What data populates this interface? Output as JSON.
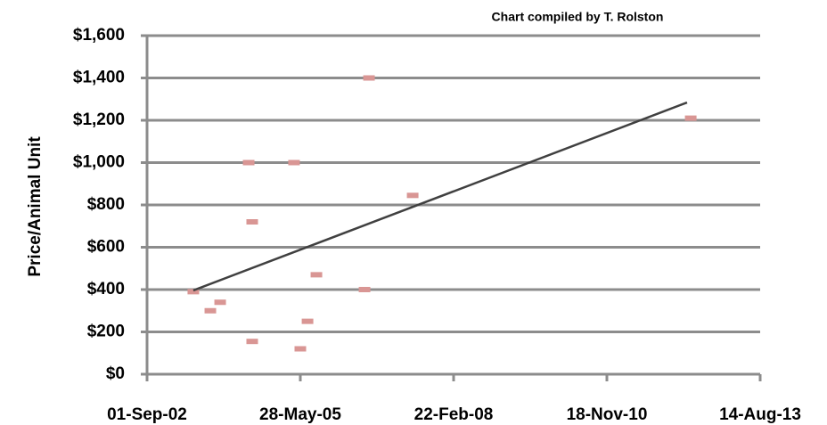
{
  "chart_data": {
    "type": "scatter",
    "subtitle": "Chart compiled by T. Rolston",
    "y_label": "Price/Animal Unit",
    "x": [
      37802,
      37913,
      37977,
      38163,
      38186,
      38186,
      38459,
      38500,
      38547,
      38605,
      38919,
      38948,
      39233,
      41047
    ],
    "values": [
      390,
      300,
      340,
      1000,
      720,
      155,
      1000,
      120,
      250,
      470,
      400,
      1400,
      845,
      1210
    ],
    "color": "#d99694",
    "trendline": {
      "x": [
        37802,
        41023
      ],
      "values": [
        396,
        1284
      ],
      "color": "#404040"
    },
    "xlim": [
      37500,
      41500
    ],
    "xticks": [
      {
        "value": 37500,
        "label": "01-Sep-02"
      },
      {
        "value": 38500,
        "label": "28-May-05"
      },
      {
        "value": 39500,
        "label": "22-Feb-08"
      },
      {
        "value": 40500,
        "label": "18-Nov-10"
      },
      {
        "value": 41500,
        "label": "14-Aug-13"
      }
    ],
    "ylim": [
      0,
      1600
    ],
    "yticks": [
      {
        "value": 0,
        "label": "$0"
      },
      {
        "value": 200,
        "label": "$200"
      },
      {
        "value": 400,
        "label": "$400"
      },
      {
        "value": 600,
        "label": "$600"
      },
      {
        "value": 800,
        "label": "$800"
      },
      {
        "value": 1000,
        "label": "$1,000"
      },
      {
        "value": 1200,
        "label": "$1,200"
      },
      {
        "value": 1400,
        "label": "$1,400"
      },
      {
        "value": 1600,
        "label": "$1,600"
      }
    ],
    "grid": true
  }
}
